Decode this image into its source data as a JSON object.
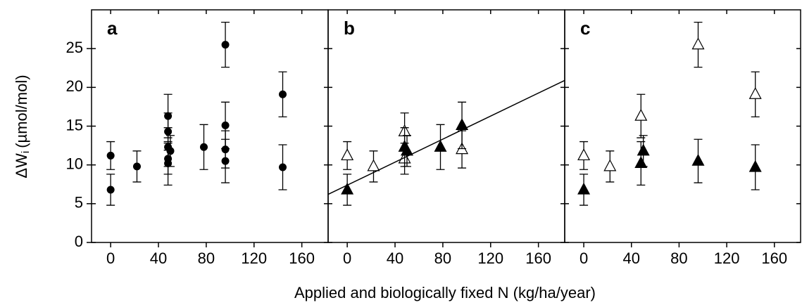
{
  "y_label": {
    "symbol": "ΔW",
    "subscript": "i",
    "unit": "(µmol/mol)"
  },
  "x_label": "Applied and biologically fixed N (kg/ha/year)",
  "chart_data": [
    {
      "type": "scatter",
      "title": "a",
      "xlim": [
        -16,
        182
      ],
      "xticks": [
        0,
        40,
        80,
        120,
        160
      ],
      "ylim": [
        0,
        30
      ],
      "yticks": [
        0,
        5,
        10,
        15,
        20,
        25
      ],
      "series": [
        {
          "marker": "circle",
          "filled": true,
          "color": "#000000",
          "x": [
            0,
            0,
            22,
            48,
            48,
            48,
            48,
            48,
            50,
            78,
            96,
            96,
            96,
            96,
            144,
            144
          ],
          "values": [
            11.2,
            6.8,
            9.8,
            16.3,
            14.3,
            12.3,
            10.8,
            10.2,
            11.8,
            12.3,
            25.5,
            15.1,
            12.0,
            10.5,
            19.1,
            9.7
          ],
          "errors": [
            1.8,
            2.0,
            2.0,
            2.8,
            2.4,
            2.5,
            2.0,
            2.8,
            2.0,
            2.9,
            2.9,
            3.0,
            2.4,
            2.8,
            2.9,
            2.9
          ]
        }
      ]
    },
    {
      "type": "scatter",
      "title": "b",
      "xlim": [
        -16,
        182
      ],
      "xticks": [
        0,
        40,
        80,
        120,
        160
      ],
      "ylim": [
        0,
        30
      ],
      "yticks": [
        0,
        5,
        10,
        15,
        20,
        25
      ],
      "series": [
        {
          "marker": "triangle",
          "filled": false,
          "color": "#000000",
          "x": [
            0,
            22,
            48,
            48,
            96
          ],
          "values": [
            11.2,
            9.8,
            14.3,
            10.8,
            12.0
          ],
          "errors": [
            1.8,
            2.0,
            2.4,
            2.0,
            2.4
          ]
        },
        {
          "marker": "triangle",
          "filled": true,
          "color": "#000000",
          "x": [
            0,
            48,
            50,
            78,
            96
          ],
          "values": [
            6.8,
            12.3,
            11.8,
            12.3,
            15.1
          ],
          "errors": [
            2.0,
            2.5,
            2.0,
            2.9,
            3.0
          ]
        },
        {
          "marker": "line",
          "color": "#000000",
          "x": [
            -16,
            182
          ],
          "values": [
            6.2,
            20.9
          ]
        }
      ]
    },
    {
      "type": "scatter",
      "title": "c",
      "xlim": [
        -16,
        182
      ],
      "xticks": [
        0,
        40,
        80,
        120,
        160
      ],
      "ylim": [
        0,
        30
      ],
      "yticks": [
        0,
        5,
        10,
        15,
        20,
        25
      ],
      "series": [
        {
          "marker": "triangle",
          "filled": false,
          "color": "#000000",
          "x": [
            0,
            22,
            48,
            96,
            144
          ],
          "values": [
            11.2,
            9.8,
            16.3,
            25.5,
            19.1
          ],
          "errors": [
            1.8,
            2.0,
            2.8,
            2.9,
            2.9
          ]
        },
        {
          "marker": "triangle",
          "filled": true,
          "color": "#000000",
          "x": [
            0,
            48,
            50,
            96,
            144
          ],
          "values": [
            6.8,
            10.2,
            11.8,
            10.5,
            9.7
          ],
          "errors": [
            2.0,
            2.8,
            2.0,
            2.8,
            2.9
          ]
        }
      ]
    }
  ]
}
